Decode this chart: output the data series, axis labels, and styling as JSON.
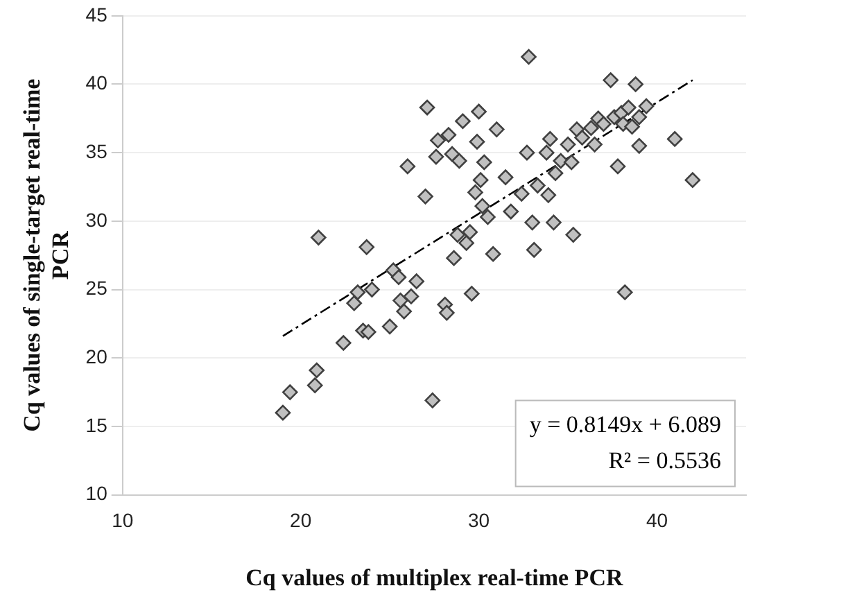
{
  "chart_data": {
    "type": "scatter",
    "xlabel": "Cq values of multiplex real-time PCR",
    "ylabel": "Cq values of single-target real-time PCR",
    "xlim": [
      10,
      45
    ],
    "xticks": [
      10,
      20,
      30,
      40
    ],
    "ylim": [
      10,
      45
    ],
    "yticks": [
      10,
      15,
      20,
      25,
      30,
      35,
      40,
      45
    ],
    "grid": "y",
    "legend": false,
    "marker": "diamond",
    "annotations": [
      "y = 0.8149x + 6.089",
      "R² = 0.5536"
    ],
    "series": [
      {
        "color": "#c0c0c0",
        "x": [
          19,
          19.4,
          20.8,
          20.9,
          21,
          22.4,
          23,
          23.2,
          23.5,
          23.7,
          23.8,
          24,
          25,
          25.2,
          25.5,
          25.6,
          25.8,
          26,
          26.2,
          26.5,
          27,
          27.1,
          27.4,
          27.6,
          27.7,
          28.1,
          28.2,
          28.3,
          28.5,
          28.6,
          28.8,
          28.9,
          29.1,
          29.3,
          29.5,
          29.6,
          29.8,
          29.9,
          30,
          30.1,
          30.2,
          30.3,
          30.5,
          30.8,
          31,
          31.5,
          31.8,
          32.4,
          32.7,
          32.8,
          33,
          33.1,
          33.3,
          33.8,
          33.9,
          34,
          34.2,
          34.3,
          34.6,
          35,
          35.2,
          35.3,
          35.5,
          35.8,
          36.3,
          36.5,
          36.7,
          37,
          37.4,
          37.6,
          37.8,
          38,
          38.1,
          38.2,
          38.4,
          38.6,
          38.8,
          39,
          39,
          39.4,
          41,
          42
        ],
        "values": [
          16,
          17.5,
          18,
          19.1,
          28.8,
          21.1,
          24,
          24.8,
          22,
          28.1,
          21.9,
          25,
          22.3,
          26.4,
          25.9,
          24.2,
          23.4,
          34,
          24.5,
          25.6,
          31.8,
          38.3,
          16.9,
          34.7,
          35.9,
          23.9,
          23.3,
          36.3,
          34.9,
          27.3,
          29,
          34.4,
          37.3,
          28.4,
          29.2,
          24.7,
          32.1,
          35.8,
          38,
          33,
          31.1,
          34.3,
          30.3,
          27.6,
          36.7,
          33.2,
          30.7,
          32,
          35,
          42,
          29.9,
          27.9,
          32.6,
          35,
          31.9,
          36,
          29.9,
          33.5,
          34.4,
          35.6,
          34.3,
          29,
          36.7,
          36.1,
          36.8,
          35.6,
          37.5,
          37.1,
          40.3,
          37.6,
          34,
          37.9,
          37.1,
          24.8,
          38.3,
          36.9,
          40,
          37.6,
          35.5,
          38.4,
          36,
          33
        ]
      },
      {
        "type": "line",
        "color": "#000000",
        "line_style": "dashed",
        "marker": "none",
        "x": [
          19,
          42
        ],
        "values": [
          21.6,
          40.3
        ]
      }
    ]
  }
}
